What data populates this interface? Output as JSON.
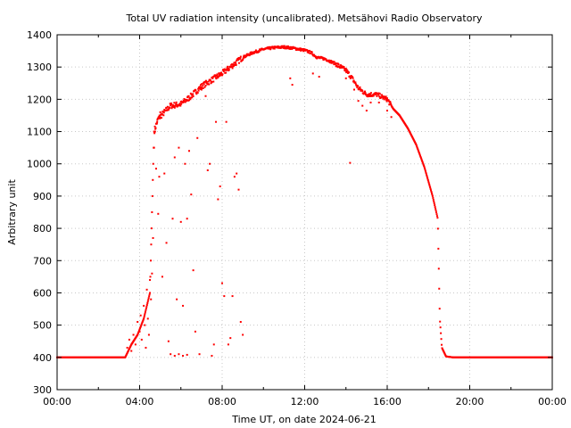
{
  "chart_data": {
    "type": "scatter",
    "title": "Total UV radiation intensity (uncalibrated). Metsähovi Radio Observatory",
    "xlabel": "Time UT, on date 2024-06-21",
    "ylabel": "Arbitrary unit",
    "xlim": [
      "00:00",
      "24:00"
    ],
    "ylim": [
      300,
      1400
    ],
    "x_ticks": [
      "00:00",
      "04:00",
      "08:00",
      "12:00",
      "16:00",
      "20:00",
      "00:00"
    ],
    "y_ticks": [
      300,
      400,
      500,
      600,
      700,
      800,
      900,
      1000,
      1100,
      1200,
      1300,
      1400
    ],
    "grid": true,
    "series_color": "#ff0000",
    "x_unit": "hours UT",
    "envelope": [
      [
        0.0,
        400
      ],
      [
        3.3,
        400
      ],
      [
        3.6,
        440
      ],
      [
        3.9,
        470
      ],
      [
        4.2,
        520
      ],
      [
        4.5,
        600
      ],
      [
        4.7,
        1100
      ],
      [
        4.9,
        1140
      ],
      [
        5.2,
        1160
      ],
      [
        5.5,
        1180
      ],
      [
        6.0,
        1185
      ],
      [
        6.5,
        1210
      ],
      [
        7.0,
        1240
      ],
      [
        7.5,
        1260
      ],
      [
        8.0,
        1280
      ],
      [
        8.5,
        1305
      ],
      [
        9.0,
        1330
      ],
      [
        9.5,
        1345
      ],
      [
        10.0,
        1355
      ],
      [
        10.5,
        1360
      ],
      [
        11.0,
        1362
      ],
      [
        11.5,
        1358
      ],
      [
        12.0,
        1352
      ],
      [
        12.3,
        1345
      ],
      [
        12.6,
        1330
      ],
      [
        13.0,
        1325
      ],
      [
        13.5,
        1310
      ],
      [
        14.0,
        1290
      ],
      [
        14.3,
        1265
      ],
      [
        14.6,
        1235
      ],
      [
        15.0,
        1215
      ],
      [
        15.5,
        1215
      ],
      [
        16.0,
        1200
      ],
      [
        16.3,
        1170
      ],
      [
        16.6,
        1150
      ],
      [
        17.0,
        1110
      ],
      [
        17.4,
        1060
      ],
      [
        17.8,
        990
      ],
      [
        18.2,
        900
      ],
      [
        18.45,
        830
      ],
      [
        18.55,
        520
      ],
      [
        18.65,
        430
      ],
      [
        18.85,
        403
      ],
      [
        19.2,
        400
      ],
      [
        24.0,
        400
      ]
    ],
    "scatter_points": [
      [
        3.4,
        430
      ],
      [
        3.5,
        455
      ],
      [
        3.6,
        420
      ],
      [
        3.7,
        470
      ],
      [
        3.8,
        440
      ],
      [
        3.9,
        510
      ],
      [
        4.0,
        480
      ],
      [
        4.05,
        530
      ],
      [
        4.1,
        455
      ],
      [
        4.2,
        560
      ],
      [
        4.25,
        500
      ],
      [
        4.3,
        430
      ],
      [
        4.35,
        610
      ],
      [
        4.4,
        520
      ],
      [
        4.45,
        470
      ],
      [
        4.5,
        640
      ],
      [
        4.55,
        580
      ],
      [
        4.6,
        660
      ],
      [
        4.65,
        770
      ],
      [
        4.7,
        1050
      ],
      [
        4.75,
        1100
      ],
      [
        4.8,
        985
      ],
      [
        4.85,
        1130
      ],
      [
        4.9,
        845
      ],
      [
        4.95,
        960
      ],
      [
        5.0,
        1160
      ],
      [
        5.1,
        650
      ],
      [
        5.2,
        970
      ],
      [
        5.3,
        755
      ],
      [
        5.4,
        450
      ],
      [
        5.5,
        410
      ],
      [
        5.6,
        830
      ],
      [
        5.7,
        1020
      ],
      [
        5.8,
        580
      ],
      [
        5.9,
        1050
      ],
      [
        6.0,
        820
      ],
      [
        6.1,
        560
      ],
      [
        6.2,
        1000
      ],
      [
        6.3,
        830
      ],
      [
        6.4,
        1040
      ],
      [
        6.5,
        905
      ],
      [
        6.6,
        670
      ],
      [
        6.7,
        480
      ],
      [
        6.8,
        1080
      ],
      [
        6.9,
        410
      ],
      [
        7.0,
        1230
      ],
      [
        7.2,
        1210
      ],
      [
        7.3,
        980
      ],
      [
        7.4,
        1000
      ],
      [
        7.5,
        405
      ],
      [
        7.6,
        440
      ],
      [
        7.7,
        1130
      ],
      [
        7.8,
        890
      ],
      [
        7.9,
        930
      ],
      [
        8.0,
        630
      ],
      [
        8.1,
        590
      ],
      [
        8.2,
        1130
      ],
      [
        8.3,
        440
      ],
      [
        8.4,
        460
      ],
      [
        8.5,
        590
      ],
      [
        8.6,
        960
      ],
      [
        8.7,
        970
      ],
      [
        8.8,
        920
      ],
      [
        8.9,
        510
      ],
      [
        9.0,
        470
      ],
      [
        5.7,
        405
      ],
      [
        5.9,
        410
      ],
      [
        6.1,
        405
      ],
      [
        6.3,
        408
      ],
      [
        11.3,
        1265
      ],
      [
        11.4,
        1245
      ],
      [
        12.4,
        1280
      ],
      [
        12.7,
        1270
      ],
      [
        13.6,
        1300
      ],
      [
        14.0,
        1265
      ],
      [
        14.2,
        1003
      ],
      [
        14.4,
        1230
      ],
      [
        14.6,
        1195
      ],
      [
        14.8,
        1180
      ],
      [
        15.0,
        1165
      ],
      [
        15.2,
        1190
      ],
      [
        15.6,
        1190
      ],
      [
        16.0,
        1165
      ],
      [
        16.2,
        1145
      ]
    ]
  }
}
